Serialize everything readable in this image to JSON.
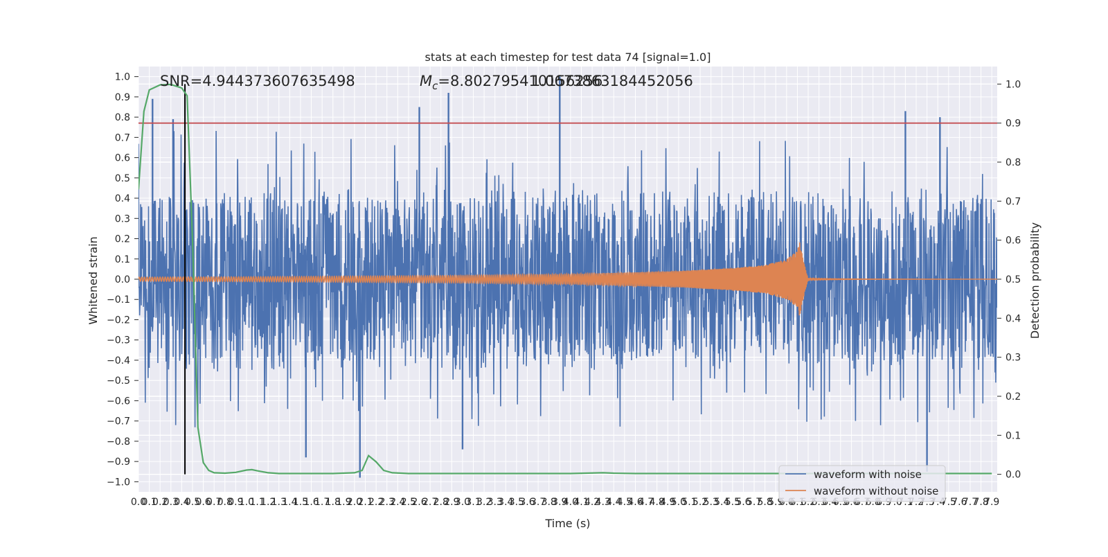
{
  "figure": {
    "title": "stats at each timestep for test data 74 [signal=1.0]",
    "annotation_snr": "SNR=4.944373607635498",
    "annotation_mc_prefix": "M",
    "annotation_mc_sub": "c",
    "annotation_mc_value": "=8.802795410156256",
    "annotation_overlap": "1.0673863184452056"
  },
  "colors": {
    "background": "#eaeaf2",
    "grid": "#ffffff",
    "noisy": "#4c72b0",
    "clean": "#dd8452",
    "probability": "#55a868",
    "threshold": "#c44e52",
    "marker": "#000000"
  },
  "chart_data": {
    "type": "line",
    "xlabel": "Time (s)",
    "ylabel_left": "Whitened strain",
    "ylabel_right": "Detection probability",
    "xlim": [
      0.0,
      7.95
    ],
    "ylim_left": [
      -1.05,
      1.05
    ],
    "ylim_right": [
      -0.045,
      1.045
    ],
    "x_ticks": [
      "0.0",
      "0.1",
      "0.2",
      "0.3",
      "0.4",
      "0.5",
      "0.6",
      "0.7",
      "0.8",
      "0.9",
      "1.0",
      "1.1",
      "1.2",
      "1.3",
      "1.4",
      "1.5",
      "1.6",
      "1.7",
      "1.8",
      "1.9",
      "2.0",
      "2.1",
      "2.2",
      "2.3",
      "2.4",
      "2.5",
      "2.6",
      "2.7",
      "2.8",
      "2.9",
      "3.0",
      "3.1",
      "3.2",
      "3.3",
      "3.4",
      "3.5",
      "3.6",
      "3.7",
      "3.8",
      "3.9",
      "4.0",
      "4.1",
      "4.2",
      "4.3",
      "4.4",
      "4.5",
      "4.6",
      "4.7",
      "4.8",
      "4.9",
      "5.0",
      "5.1",
      "5.2",
      "5.3",
      "5.4",
      "5.5",
      "5.6",
      "5.7",
      "5.8",
      "5.9",
      "6.0",
      "6.1",
      "6.2",
      "6.3",
      "6.4",
      "6.5",
      "6.6",
      "6.7",
      "6.8",
      "6.9",
      "7.0",
      "7.1",
      "7.2",
      "7.3",
      "7.4",
      "7.5",
      "7.6",
      "7.7",
      "7.8",
      "7.9"
    ],
    "y_ticks_left": [
      "1.0",
      "0.9",
      "0.8",
      "0.7",
      "0.6",
      "0.5",
      "0.4",
      "0.3",
      "0.2",
      "0.1",
      "0.0",
      "−0.1",
      "−0.2",
      "−0.3",
      "−0.4",
      "−0.5",
      "−0.6",
      "−0.7",
      "−0.8",
      "−0.9",
      "−1.0"
    ],
    "y_ticks_right": [
      "1.0",
      "0.9",
      "0.8",
      "0.7",
      "0.6",
      "0.5",
      "0.4",
      "0.3",
      "0.2",
      "0.1",
      "0.0"
    ],
    "threshold_probability": 0.9,
    "marker_time": 0.43,
    "series": [
      {
        "name": "waveform with noise",
        "axis": "left",
        "envelope_typical": [
          -0.45,
          0.45
        ],
        "peaks": [
          [
            0.13,
            0.89
          ],
          [
            0.32,
            0.79
          ],
          [
            2.6,
            0.85
          ],
          [
            2.87,
            0.92
          ],
          [
            3.9,
            1.0
          ],
          [
            7.1,
            0.83
          ],
          [
            7.42,
            0.8
          ],
          [
            7.3,
            -0.95
          ],
          [
            2.05,
            -0.98
          ],
          [
            3.0,
            -0.84
          ],
          [
            1.55,
            -0.88
          ]
        ]
      },
      {
        "name": "waveform without noise",
        "axis": "left",
        "merger_time": 6.12,
        "x": [
          0.0,
          1.0,
          2.0,
          3.0,
          4.0,
          5.0,
          5.5,
          5.8,
          6.0,
          6.1,
          6.12,
          6.2,
          7.95
        ],
        "amplitude": [
          0.01,
          0.012,
          0.015,
          0.018,
          0.025,
          0.04,
          0.055,
          0.07,
          0.1,
          0.14,
          0.19,
          0.004,
          0.003
        ]
      },
      {
        "name": "",
        "axis": "right",
        "x": [
          0.0,
          0.05,
          0.1,
          0.2,
          0.3,
          0.4,
          0.45,
          0.5,
          0.55,
          0.6,
          0.65,
          0.7,
          0.8,
          0.9,
          1.0,
          1.05,
          1.1,
          1.2,
          1.3,
          1.5,
          1.8,
          2.0,
          2.07,
          2.13,
          2.2,
          2.27,
          2.35,
          2.5,
          3.0,
          4.0,
          4.3,
          4.4,
          4.6,
          5.0,
          6.0,
          7.0,
          7.9
        ],
        "y": [
          0.73,
          0.93,
          0.985,
          0.998,
          0.999,
          0.99,
          0.97,
          0.6,
          0.12,
          0.03,
          0.01,
          0.004,
          0.003,
          0.005,
          0.011,
          0.012,
          0.009,
          0.004,
          0.002,
          0.002,
          0.002,
          0.004,
          0.01,
          0.048,
          0.032,
          0.01,
          0.004,
          0.002,
          0.002,
          0.002,
          0.004,
          0.003,
          0.002,
          0.002,
          0.002,
          0.002,
          0.002
        ]
      }
    ],
    "legend": {
      "placement": "lower-right",
      "entries": [
        "waveform with noise",
        "waveform without noise"
      ]
    }
  }
}
